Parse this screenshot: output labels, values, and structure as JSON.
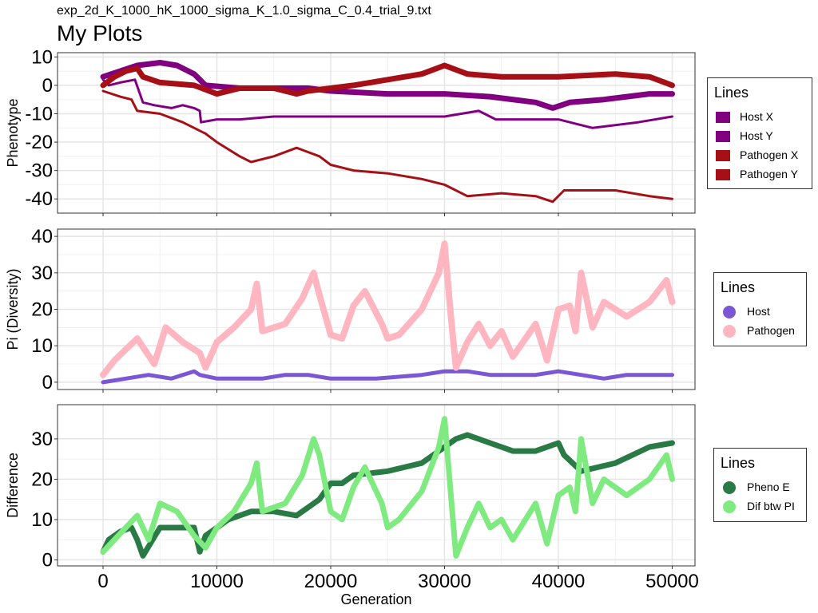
{
  "figure": {
    "subtitle": "exp_2d_K_1000_hK_1000_sigma_K_1.0_sigma_C_0.4_trial_9.txt",
    "title": "My Plots",
    "xlabel": "Generation"
  },
  "chart_data": [
    {
      "type": "line",
      "ylabel": "Phenotype",
      "xlim": [
        -4000,
        52000
      ],
      "ylim": [
        -45,
        11.5
      ],
      "x_ticks": [
        0,
        10000,
        20000,
        30000,
        40000,
        50000
      ],
      "y_ticks": [
        10,
        0,
        -10,
        -20,
        -30,
        -40
      ],
      "grid": true,
      "legend": {
        "title": "Lines",
        "position": "right"
      },
      "series": [
        {
          "name": "Host X",
          "color": "#800080",
          "width": 7,
          "x": [
            0,
            1500,
            3000,
            5000,
            6500,
            8000,
            9000,
            12000,
            15000,
            18000,
            20000,
            25000,
            30000,
            34000,
            38000,
            39500,
            41000,
            44000,
            48000,
            50000
          ],
          "y": [
            3,
            5,
            7,
            8,
            7,
            4,
            0,
            -1,
            -1,
            -1,
            -2,
            -3,
            -3,
            -4,
            -6,
            -8,
            -6,
            -5,
            -3,
            -3
          ]
        },
        {
          "name": "Host Y",
          "color": "#800080",
          "width": 3,
          "x": [
            0,
            500,
            1500,
            2800,
            3500,
            4500,
            6000,
            7000,
            8000,
            8500,
            8600,
            10000,
            12000,
            15000,
            20000,
            25000,
            30000,
            33000,
            34500,
            38000,
            40000,
            43000,
            47000,
            50000
          ],
          "y": [
            2,
            0,
            1,
            2,
            -6,
            -7,
            -8,
            -7,
            -8,
            -9,
            -13,
            -12,
            -12,
            -11,
            -11,
            -11,
            -11,
            -9,
            -12,
            -12,
            -12,
            -15,
            -13,
            -11
          ]
        },
        {
          "name": "Pathogen X",
          "color": "#A50F15",
          "width": 7,
          "x": [
            0,
            1000,
            2000,
            3000,
            3500,
            5000,
            8000,
            10000,
            12000,
            15000,
            17000,
            18000,
            20000,
            22000,
            25000,
            28000,
            30000,
            32000,
            35000,
            40000,
            45000,
            48000,
            50000
          ],
          "y": [
            0,
            3,
            5,
            6,
            3,
            1,
            0,
            -3,
            -1,
            -1,
            -3,
            -2,
            -1,
            0,
            2,
            4,
            7,
            4,
            3,
            3,
            4,
            3,
            0
          ]
        },
        {
          "name": "Pathogen Y",
          "color": "#A50F15",
          "width": 3,
          "x": [
            0,
            1500,
            2500,
            3000,
            5000,
            7000,
            9000,
            10000,
            12000,
            13000,
            15000,
            17000,
            19000,
            20000,
            22000,
            25000,
            28000,
            30000,
            32000,
            35000,
            38000,
            39500,
            40500,
            45000,
            48000,
            50000
          ],
          "y": [
            -2,
            -4,
            -5,
            -9,
            -10,
            -13,
            -17,
            -20,
            -25,
            -27,
            -25,
            -22,
            -25,
            -28,
            -30,
            -31,
            -33,
            -35,
            -39,
            -38,
            -39,
            -41,
            -37,
            -37,
            -39,
            -40
          ]
        }
      ]
    },
    {
      "type": "line",
      "ylabel": "Pi (Diversity)",
      "xlim": [
        -4000,
        52000
      ],
      "ylim": [
        -2,
        42
      ],
      "x_ticks": [
        0,
        10000,
        20000,
        30000,
        40000,
        50000
      ],
      "y_ticks": [
        40,
        30,
        20,
        10,
        0
      ],
      "grid": true,
      "legend": {
        "title": "Lines",
        "position": "right"
      },
      "series": [
        {
          "name": "Host",
          "color": "#7B57D6",
          "width": 5,
          "x": [
            0,
            2000,
            4000,
            6000,
            8000,
            8500,
            10000,
            12000,
            14000,
            16000,
            18000,
            20000,
            24000,
            28000,
            30000,
            32000,
            34000,
            36000,
            38000,
            40000,
            42000,
            44000,
            46000,
            48000,
            50000
          ],
          "y": [
            0,
            1,
            2,
            1,
            3,
            2,
            1,
            1,
            1,
            2,
            2,
            1,
            1,
            2,
            3,
            3,
            2,
            2,
            2,
            3,
            2,
            1,
            2,
            2,
            2
          ]
        },
        {
          "name": "Pathogen",
          "color": "#FFB6C1",
          "width": 8,
          "x": [
            0,
            1000,
            2000,
            3000,
            4500,
            5500,
            7000,
            8500,
            9000,
            10000,
            11500,
            13000,
            13500,
            14000,
            16000,
            17500,
            18500,
            19000,
            20000,
            21000,
            22000,
            23000,
            24500,
            25000,
            26000,
            28000,
            29500,
            30000,
            30500,
            31000,
            32000,
            33000,
            34000,
            35000,
            36000,
            38000,
            39000,
            40000,
            41000,
            41500,
            42000,
            43000,
            44000,
            46000,
            48000,
            49500,
            50000
          ],
          "y": [
            2,
            6,
            9,
            12,
            5,
            15,
            11,
            8,
            4,
            11,
            15,
            20,
            27,
            14,
            16,
            23,
            30,
            24,
            13,
            12,
            21,
            25,
            16,
            12,
            13,
            20,
            30,
            38,
            20,
            4,
            11,
            16,
            10,
            14,
            7,
            16,
            6,
            20,
            21,
            14,
            30,
            15,
            22,
            18,
            22,
            28,
            22
          ]
        }
      ]
    },
    {
      "type": "line",
      "ylabel": "Difference",
      "xlim": [
        -4000,
        52000
      ],
      "ylim": [
        -1.5,
        38.5
      ],
      "x_ticks": [
        0,
        10000,
        20000,
        30000,
        40000,
        50000
      ],
      "x_tick_labels": [
        "0",
        "10000",
        "20000",
        "30000",
        "40000",
        "50000"
      ],
      "y_ticks": [
        30,
        20,
        10,
        0
      ],
      "grid": true,
      "legend": {
        "title": "Lines",
        "position": "right"
      },
      "series": [
        {
          "name": "Pheno E",
          "color": "#2A7A45",
          "width": 7,
          "x": [
            0,
            500,
            1500,
            2500,
            3000,
            3500,
            5000,
            8000,
            8500,
            9000,
            11000,
            13000,
            15000,
            17000,
            19000,
            20000,
            21000,
            22000,
            25000,
            28000,
            30000,
            31000,
            32000,
            34000,
            36000,
            38000,
            40000,
            40500,
            42000,
            45000,
            48000,
            50000
          ],
          "y": [
            2,
            5,
            7,
            8,
            5,
            1,
            8,
            8,
            2,
            6,
            10,
            12,
            12,
            11,
            15,
            19,
            19,
            21,
            22,
            24,
            28,
            30,
            31,
            29,
            27,
            27,
            29,
            26,
            22,
            24,
            28,
            29
          ]
        },
        {
          "name": "Dif btw PI",
          "color": "#7FEA80",
          "width": 7,
          "x": [
            0,
            1000,
            2000,
            3000,
            4000,
            5000,
            6500,
            8000,
            9000,
            10000,
            11500,
            13000,
            13500,
            14000,
            16000,
            17500,
            18500,
            19000,
            20000,
            21000,
            22000,
            23000,
            24500,
            25000,
            26000,
            28000,
            29500,
            30000,
            30500,
            31000,
            32000,
            33000,
            34000,
            35000,
            36000,
            38000,
            39000,
            40000,
            41000,
            41500,
            42000,
            43000,
            44000,
            46000,
            48000,
            49500,
            50000
          ],
          "y": [
            2,
            5,
            8,
            11,
            5,
            14,
            12,
            6,
            3,
            8,
            12,
            19,
            24,
            12,
            14,
            21,
            30,
            26,
            12,
            10,
            18,
            23,
            14,
            8,
            10,
            17,
            28,
            35,
            18,
            1,
            8,
            14,
            8,
            10,
            5,
            14,
            4,
            16,
            18,
            12,
            30,
            14,
            20,
            16,
            20,
            26,
            20
          ]
        }
      ]
    }
  ]
}
